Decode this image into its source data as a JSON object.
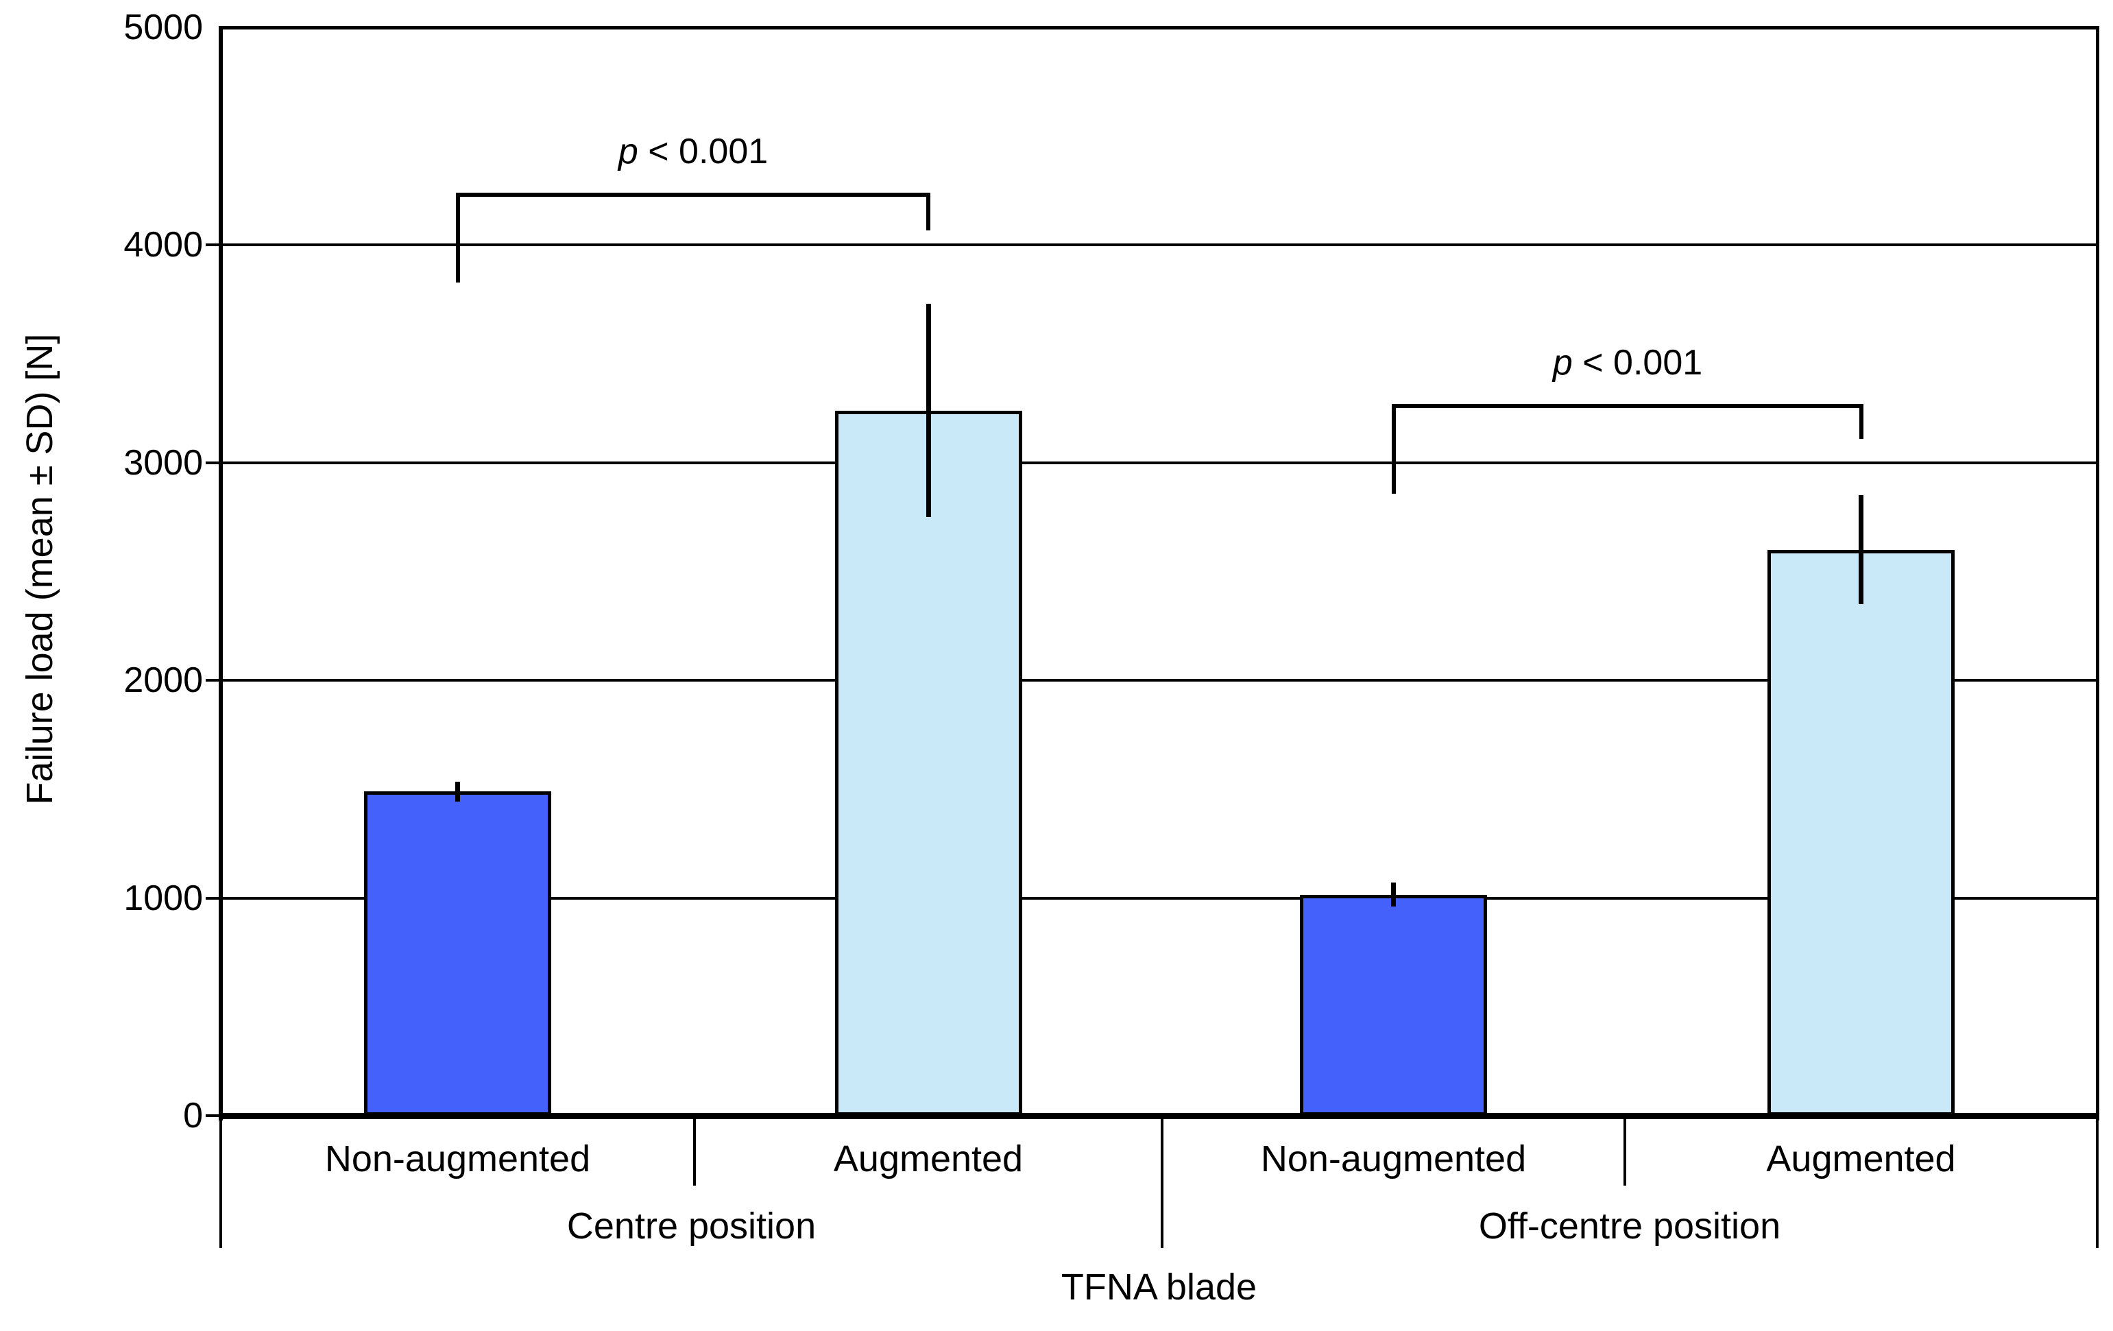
{
  "chart_data": {
    "type": "bar",
    "title": "",
    "ylabel": "Failure load (mean ± SD) [N]",
    "xlabel": "TFNA blade",
    "ylim": [
      0,
      5000
    ],
    "yticks": [
      0,
      1000,
      2000,
      3000,
      4000,
      5000
    ],
    "grid": "horizontal",
    "legend": "none",
    "groups": [
      {
        "label": "Centre position",
        "bars": [
          {
            "label": "Non-augmented",
            "mean": 1490,
            "sd": 45,
            "color_key": "non_augmented"
          },
          {
            "label": "Augmented",
            "mean": 3240,
            "sd": 490,
            "color_key": "augmented"
          }
        ]
      },
      {
        "label": "Off-centre position",
        "bars": [
          {
            "label": "Non-augmented",
            "mean": 1015,
            "sd": 55,
            "color_key": "non_augmented"
          },
          {
            "label": "Augmented",
            "mean": 2600,
            "sd": 250,
            "color_key": "augmented"
          }
        ]
      }
    ],
    "annotations": [
      {
        "text": "p < 0.001",
        "from_bar": 0,
        "to_bar": 1
      },
      {
        "text": "p < 0.001",
        "from_bar": 2,
        "to_bar": 3
      }
    ],
    "colors": {
      "non_augmented": "#4462FB",
      "augmented": "#C9E9F8",
      "line": "#000000",
      "background": "#FFFFFF"
    }
  }
}
